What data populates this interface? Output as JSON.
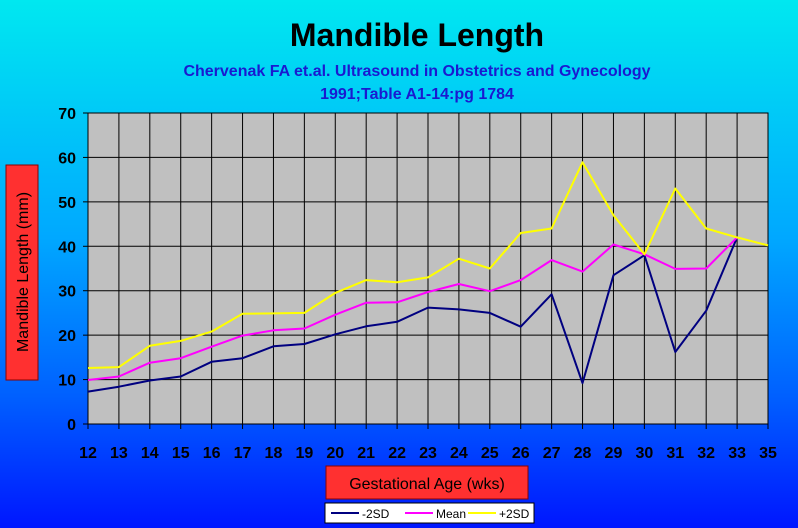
{
  "chart_data": {
    "type": "line",
    "title": "Mandible Length",
    "subtitle": [
      "Chervenak FA et.al. Ultrasound in Obstetrics and Gynecology",
      "1991;Table A1-14:pg 1784"
    ],
    "xlabel": "Gestational Age (wks)",
    "ylabel": "Mandible Length (mm)",
    "ylim": [
      0,
      70
    ],
    "yticks": [
      0,
      10,
      20,
      30,
      40,
      50,
      60,
      70
    ],
    "x": [
      12,
      13,
      14,
      15,
      16,
      17,
      18,
      19,
      20,
      21,
      22,
      23,
      24,
      25,
      26,
      27,
      28,
      29,
      30,
      31,
      32,
      33,
      35
    ],
    "grid": true,
    "legend_position": "bottom",
    "series": [
      {
        "name": "-2SD",
        "color": "#000080",
        "values": [
          7.3,
          8.4,
          9.8,
          10.7,
          14.0,
          14.8,
          17.5,
          18.0,
          20.2,
          22.0,
          23.0,
          26.2,
          25.8,
          25.0,
          21.9,
          29.2,
          9.2,
          33.5,
          38.0,
          16.2,
          25.5,
          42.0,
          null
        ]
      },
      {
        "name": "Mean",
        "color": "#ff00ff",
        "values": [
          9.9,
          10.7,
          13.8,
          14.8,
          17.4,
          19.9,
          21.1,
          21.5,
          24.6,
          27.3,
          27.4,
          29.7,
          31.5,
          29.9,
          32.4,
          36.9,
          34.3,
          40.4,
          38.2,
          34.9,
          35.0,
          42.0,
          null
        ]
      },
      {
        "name": "+2SD",
        "color": "#ffff00",
        "values": [
          12.6,
          12.8,
          17.6,
          18.7,
          20.8,
          24.8,
          24.9,
          25.0,
          29.5,
          32.4,
          31.9,
          33.0,
          37.2,
          35.0,
          43.0,
          44.0,
          58.9,
          47.0,
          38.2,
          53.0,
          44.0,
          42.0,
          40.2
        ]
      }
    ]
  }
}
